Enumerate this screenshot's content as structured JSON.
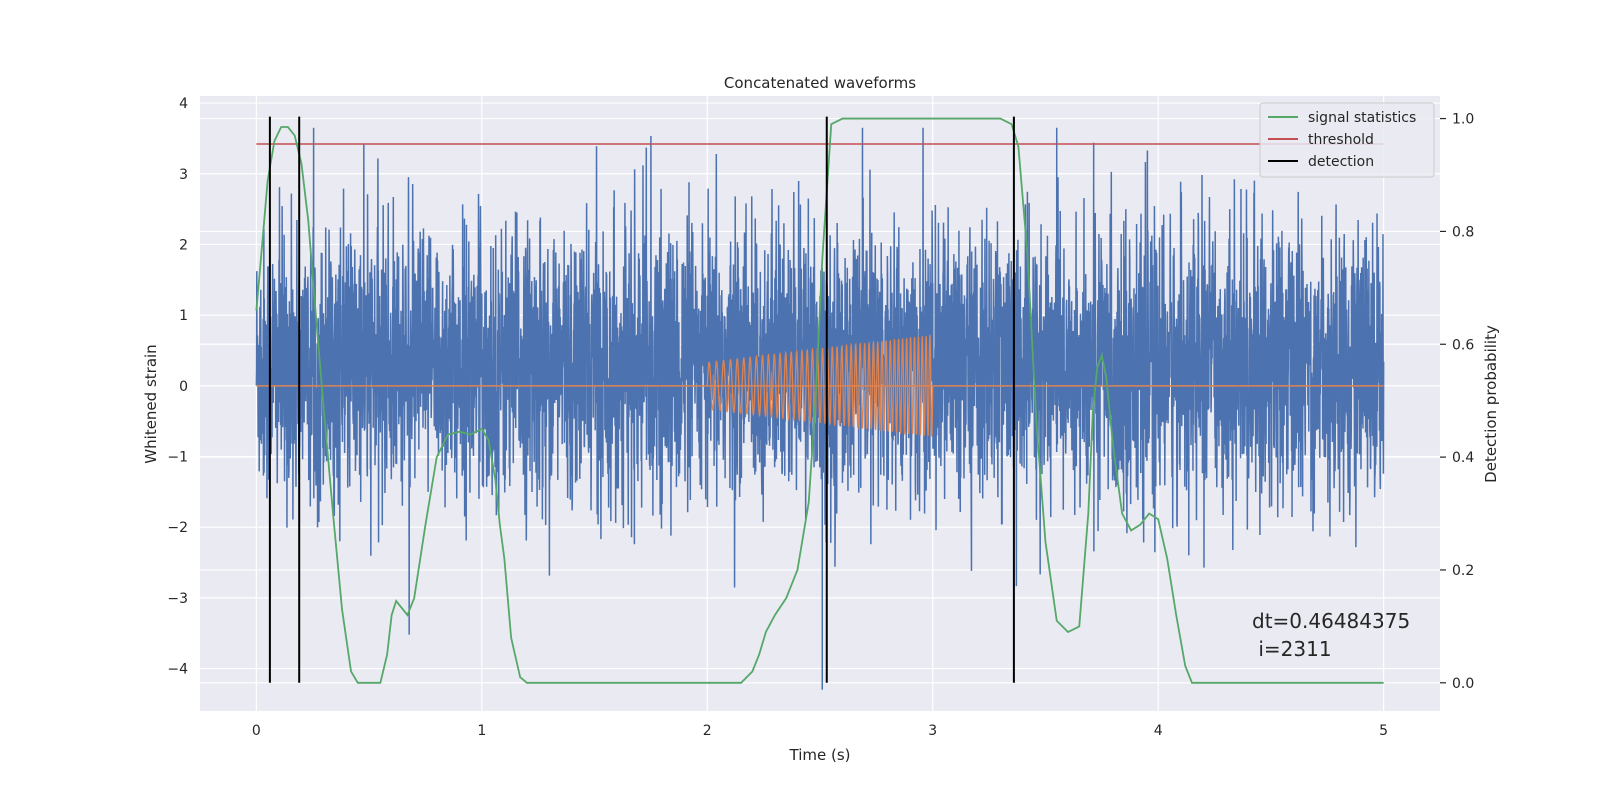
{
  "chart_data": {
    "type": "line",
    "title": "Concatenated waveforms",
    "xlabel": "Time (s)",
    "ylabel": "Whitened strain",
    "y2label": "Detection probability",
    "xlim": [
      -0.25,
      5.25
    ],
    "ylim": [
      -4.6,
      4.1
    ],
    "y2lim": [
      -0.05,
      1.04
    ],
    "x_ticks": [
      0,
      1,
      2,
      3,
      4,
      5
    ],
    "y_ticks": [
      -4,
      -3,
      -2,
      -1,
      0,
      1,
      2,
      3,
      4
    ],
    "y2_ticks": [
      0.0,
      0.2,
      0.4,
      0.6,
      0.8,
      1.0
    ],
    "x_tick_labels": [
      "0",
      "1",
      "2",
      "3",
      "4",
      "5"
    ],
    "y_tick_labels": [
      "−4",
      "−3",
      "−2",
      "−1",
      "0",
      "1",
      "2",
      "3",
      "4"
    ],
    "y2_tick_labels": [
      "0.0",
      "0.2",
      "0.4",
      "0.6",
      "0.8",
      "1.0"
    ],
    "grid": true,
    "legend_position": "top-right",
    "legend": [
      "signal statistics",
      "threshold",
      "detection"
    ],
    "colors": {
      "strain": "#4c72b0",
      "injection": "#dd8452",
      "signal_statistics": "#55a868",
      "threshold": "#c44e52",
      "detection": "#000000",
      "plot_background": "#eaeaf2",
      "grid": "#ffffff"
    },
    "strain": {
      "x_range": [
        0,
        5
      ],
      "sample_rate_hz": 1024,
      "typical_band": [
        -1.15,
        1.8
      ],
      "min": -4.3,
      "max": 3.65,
      "note_peak": {
        "x": 3.55,
        "y": 3.65
      }
    },
    "injection": {
      "start": 2.0,
      "end": 3.0,
      "amplitude_start": 0.33,
      "amplitude_end": 0.72
    },
    "threshold_value": 0.955,
    "signal_statistics": {
      "x": [
        0.0,
        0.02,
        0.05,
        0.08,
        0.11,
        0.14,
        0.17,
        0.2,
        0.23,
        0.26,
        0.3,
        0.34,
        0.38,
        0.42,
        0.45,
        0.5,
        0.55,
        0.58,
        0.6,
        0.62,
        0.64,
        0.67,
        0.7,
        0.75,
        0.8,
        0.85,
        0.9,
        0.95,
        1.0,
        1.03,
        1.06,
        1.08,
        1.1,
        1.13,
        1.17,
        1.2,
        1.25,
        1.4,
        1.6,
        1.8,
        2.0,
        2.15,
        2.2,
        2.23,
        2.26,
        2.3,
        2.35,
        2.4,
        2.45,
        2.48,
        2.51,
        2.55,
        2.6,
        2.7,
        2.9,
        3.1,
        3.3,
        3.35,
        3.38,
        3.42,
        3.46,
        3.5,
        3.55,
        3.6,
        3.65,
        3.69,
        3.71,
        3.73,
        3.75,
        3.77,
        3.8,
        3.84,
        3.88,
        3.92,
        3.96,
        4.0,
        4.04,
        4.08,
        4.12,
        4.15,
        4.2,
        4.4,
        4.6,
        4.8,
        5.0
      ],
      "y": [
        0.66,
        0.75,
        0.89,
        0.96,
        0.985,
        0.985,
        0.97,
        0.92,
        0.82,
        0.67,
        0.48,
        0.3,
        0.13,
        0.02,
        0.0,
        0.0,
        0.0,
        0.05,
        0.12,
        0.145,
        0.135,
        0.12,
        0.15,
        0.28,
        0.4,
        0.44,
        0.445,
        0.44,
        0.45,
        0.43,
        0.36,
        0.28,
        0.22,
        0.08,
        0.01,
        0.0,
        0.0,
        0.0,
        0.0,
        0.0,
        0.0,
        0.0,
        0.02,
        0.05,
        0.09,
        0.12,
        0.15,
        0.2,
        0.32,
        0.5,
        0.75,
        0.99,
        1.0,
        1.0,
        1.0,
        1.0,
        1.0,
        0.99,
        0.95,
        0.76,
        0.46,
        0.25,
        0.11,
        0.09,
        0.1,
        0.3,
        0.48,
        0.56,
        0.58,
        0.54,
        0.42,
        0.3,
        0.27,
        0.28,
        0.3,
        0.29,
        0.22,
        0.12,
        0.03,
        0.0,
        0.0,
        0.0,
        0.0,
        0.0,
        0.0
      ]
    },
    "detections": [
      0.06,
      0.19,
      2.53,
      3.36
    ],
    "annotation": {
      "line1": "dt=0.46484375",
      "line2": " i=2311"
    }
  }
}
